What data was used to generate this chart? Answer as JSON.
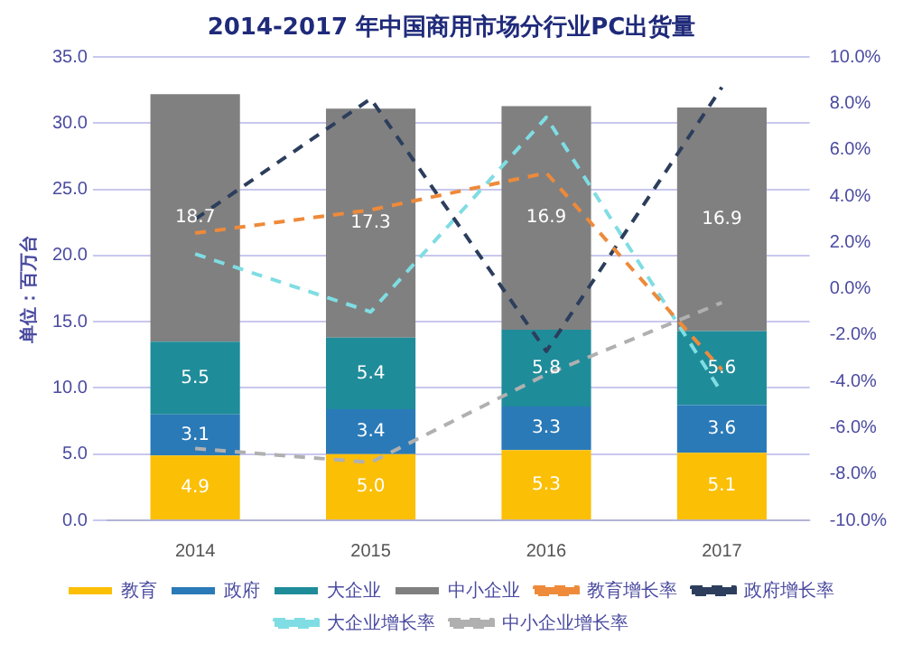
{
  "chart_data": {
    "type": "bar",
    "title": "2014-2017 年中国商用市场分行业PC出货量",
    "ylabel": "单位：百万台",
    "categories": [
      "2014",
      "2015",
      "2016",
      "2017"
    ],
    "stacked": true,
    "ylim": [
      0,
      35
    ],
    "yticks": [
      {
        "value": 0,
        "label": "0.0"
      },
      {
        "value": 5,
        "label": "5.0"
      },
      {
        "value": 10,
        "label": "10.0"
      },
      {
        "value": 15,
        "label": "15.0"
      },
      {
        "value": 20,
        "label": "20.0"
      },
      {
        "value": 25,
        "label": "25.0"
      },
      {
        "value": 30,
        "label": "30.0"
      },
      {
        "value": 35,
        "label": "35.0"
      }
    ],
    "y2lim": [
      -10,
      10
    ],
    "y2ticks": [
      {
        "value": -10,
        "label": "-10.0%"
      },
      {
        "value": -8,
        "label": "-8.0%"
      },
      {
        "value": -6,
        "label": "-6.0%"
      },
      {
        "value": -4,
        "label": "-4.0%"
      },
      {
        "value": -2,
        "label": "-2.0%"
      },
      {
        "value": 0,
        "label": "0.0%"
      },
      {
        "value": 2,
        "label": "2.0%"
      },
      {
        "value": 4,
        "label": "4.0%"
      },
      {
        "value": 6,
        "label": "6.0%"
      },
      {
        "value": 8,
        "label": "8.0%"
      },
      {
        "value": 10,
        "label": "10.0%"
      }
    ],
    "grid": "y",
    "legend": "bottom",
    "series": [
      {
        "name": "教育",
        "color": "#fbbf06",
        "values": [
          4.9,
          5.0,
          5.3,
          5.1
        ],
        "value_labels": [
          "4.9",
          "5.0",
          "5.3",
          "5.1"
        ]
      },
      {
        "name": "政府",
        "color": "#2a7ab8",
        "values": [
          3.1,
          3.4,
          3.3,
          3.6
        ],
        "value_labels": [
          "3.1",
          "3.4",
          "3.3",
          "3.6"
        ]
      },
      {
        "name": "大企业",
        "color": "#1f8c9a",
        "values": [
          5.5,
          5.4,
          5.8,
          5.6
        ],
        "value_labels": [
          "5.5",
          "5.4",
          "5.8",
          "5.6"
        ]
      },
      {
        "name": "中小企业",
        "color": "#808080",
        "values": [
          18.7,
          17.3,
          16.9,
          16.9
        ],
        "value_labels": [
          "18.7",
          "17.3",
          "16.9",
          "16.9"
        ]
      },
      {
        "name": "教育增长率",
        "type": "line",
        "axis": "y2",
        "line_style": "dashed",
        "marker": "none",
        "color": "#ee8a3a",
        "values": [
          2.4,
          3.4,
          5.0,
          -3.5
        ]
      },
      {
        "name": "政府增长率",
        "type": "line",
        "axis": "y2",
        "line_style": "dashed",
        "marker": "none",
        "color": "#2c3e5c",
        "values": [
          3.0,
          8.2,
          -2.7,
          8.7
        ]
      },
      {
        "name": "大企业增长率",
        "type": "line",
        "axis": "y2",
        "line_style": "dashed",
        "marker": "none",
        "color": "#7fdde3",
        "values": [
          1.5,
          -1.0,
          7.4,
          -4.5
        ]
      },
      {
        "name": "中小企业增长率",
        "type": "line",
        "axis": "y2",
        "line_style": "dashed",
        "marker": "none",
        "color": "#b0b0b0",
        "values": [
          -6.9,
          -7.5,
          -3.7,
          -0.6
        ]
      }
    ]
  }
}
